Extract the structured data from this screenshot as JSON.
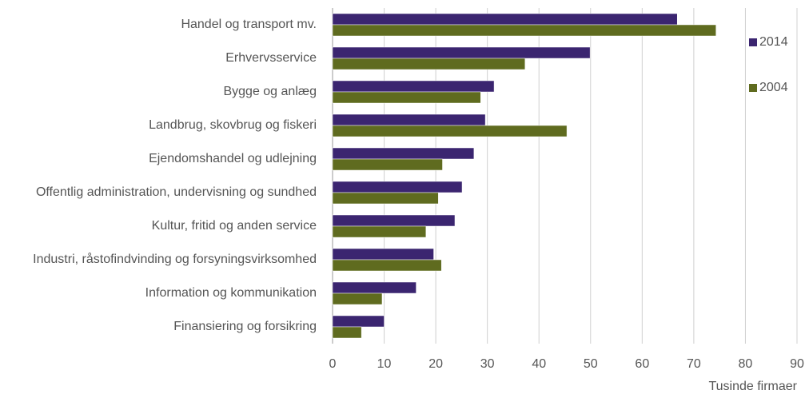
{
  "chart_data": {
    "type": "hbar",
    "categories": [
      "Handel og transport mv.",
      "Erhvervsservice",
      "Bygge og anlæg",
      "Landbrug, skovbrug og fiskeri",
      "Ejendomshandel og udlejning",
      "Offentlig administration, undervisning og sundhed",
      "Kultur, fritid og anden service",
      "Industri, råstofindvinding og forsyningsvirksomhed",
      "Information og kommunikation",
      "Finansiering og forsikring"
    ],
    "series": [
      {
        "name": "2014",
        "color": "#3b2570",
        "values": [
          66.8,
          49.9,
          31.3,
          29.6,
          27.4,
          25.1,
          23.7,
          19.6,
          16.2,
          10.0
        ]
      },
      {
        "name": "2004",
        "color": "#5f6b1f",
        "values": [
          74.3,
          37.3,
          28.7,
          45.4,
          21.3,
          20.5,
          18.1,
          21.1,
          9.6,
          5.6
        ]
      }
    ],
    "xlim": [
      0,
      90
    ],
    "xticks": [
      0,
      10,
      20,
      30,
      40,
      50,
      60,
      70,
      80,
      90
    ],
    "x_label": "Tusinde firmaer",
    "grid": true,
    "legend": "right"
  }
}
